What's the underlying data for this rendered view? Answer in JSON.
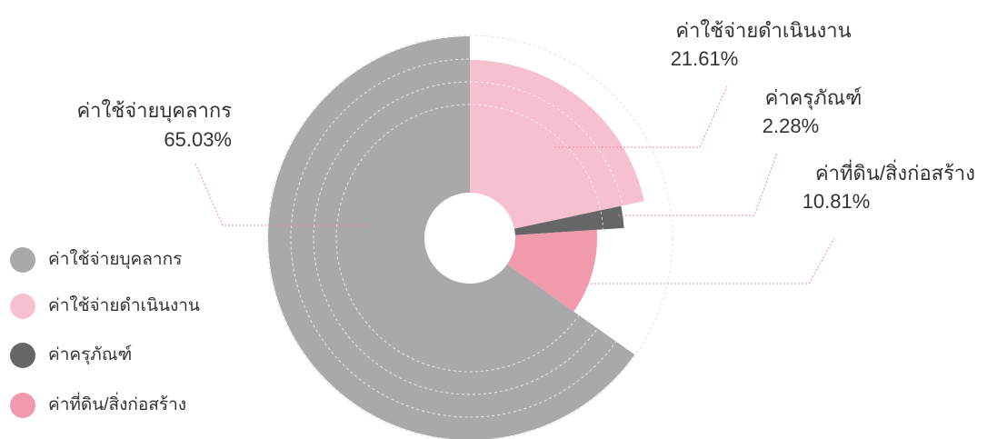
{
  "chart_data": {
    "type": "pie",
    "categories": [
      "ค่าใช้จ่ายบุคลากร",
      "ค่าใช้จ่ายดำเนินงาน",
      "ค่าครุภัณฑ์",
      "ค่าที่ดิน/สิ่งก่อสร้าง"
    ],
    "values": [
      65.03,
      21.61,
      2.28,
      10.81
    ],
    "value_labels": [
      "65.03%",
      "21.61%",
      "2.28%",
      "10.81%"
    ],
    "colors": [
      "#a9a9ab",
      "#f7c0ce",
      "#666668",
      "#f19aae"
    ],
    "legend": "left"
  }
}
